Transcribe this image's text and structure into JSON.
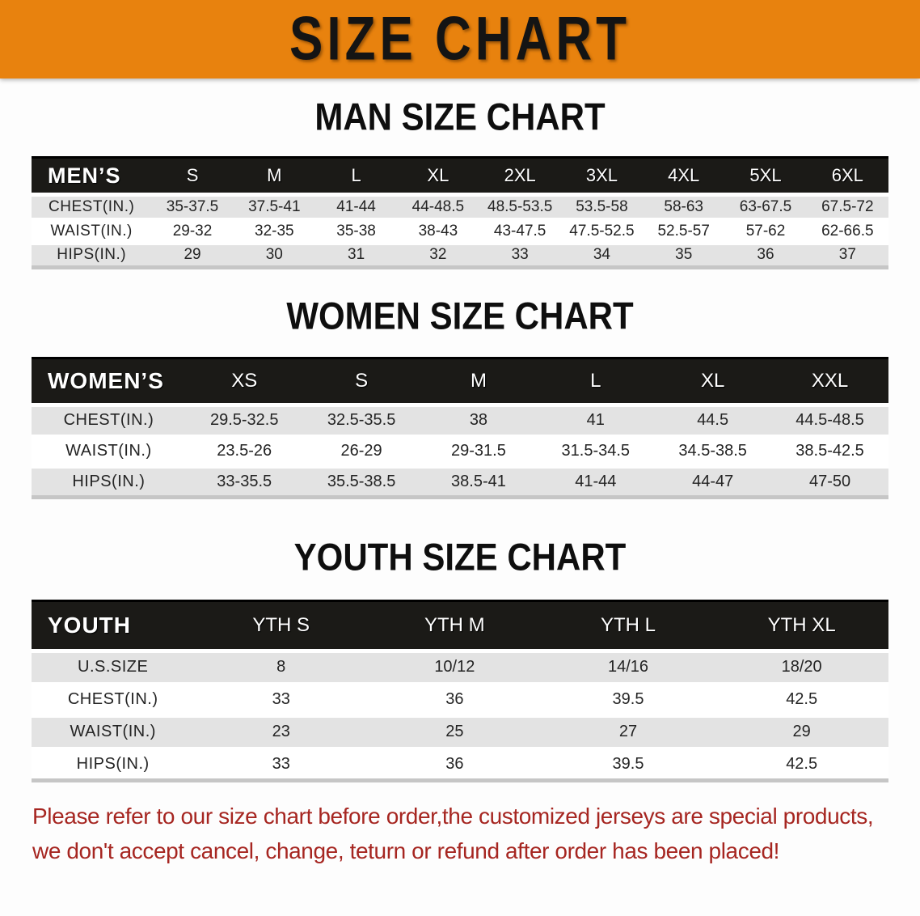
{
  "banner": {
    "title": "SIZE CHART"
  },
  "colors": {
    "banner_orange": "#E8820E",
    "header_black": "#1B1A17",
    "row_gray": "#E3E3E3",
    "disclaimer_red": "#A62621",
    "text_dark": "#242424",
    "table_edge_gray": "#C6C6C6"
  },
  "sections": [
    {
      "id": "men",
      "heading": "MAN SIZE CHART",
      "header_label": "MEN’S",
      "sizes": [
        "S",
        "M",
        "L",
        "XL",
        "2XL",
        "3XL",
        "4XL",
        "5XL",
        "6XL"
      ],
      "rows": [
        {
          "label": "CHEST(IN.)",
          "values": [
            "35-37.5",
            "37.5-41",
            "41-44",
            "44-48.5",
            "48.5-53.5",
            "53.5-58",
            "58-63",
            "63-67.5",
            "67.5-72"
          ]
        },
        {
          "label": "WAIST(IN.)",
          "values": [
            "29-32",
            "32-35",
            "35-38",
            "38-43",
            "43-47.5",
            "47.5-52.5",
            "52.5-57",
            "57-62",
            "62-66.5"
          ]
        },
        {
          "label": "HIPS(IN.)",
          "values": [
            "29",
            "30",
            "31",
            "32",
            "33",
            "34",
            "35",
            "36",
            "37"
          ]
        }
      ]
    },
    {
      "id": "women",
      "heading": "WOMEN SIZE CHART",
      "header_label": "WOMEN’S",
      "sizes": [
        "XS",
        "S",
        "M",
        "L",
        "XL",
        "XXL"
      ],
      "rows": [
        {
          "label": "CHEST(IN.)",
          "values": [
            "29.5-32.5",
            "32.5-35.5",
            "38",
            "41",
            "44.5",
            "44.5-48.5"
          ]
        },
        {
          "label": "WAIST(IN.)",
          "values": [
            "23.5-26",
            "26-29",
            "29-31.5",
            "31.5-34.5",
            "34.5-38.5",
            "38.5-42.5"
          ]
        },
        {
          "label": "HIPS(IN.)",
          "values": [
            "33-35.5",
            "35.5-38.5",
            "38.5-41",
            "41-44",
            "44-47",
            "47-50"
          ]
        }
      ]
    },
    {
      "id": "youth",
      "heading": "YOUTH SIZE CHART",
      "header_label": "YOUTH",
      "sizes": [
        "YTH S",
        "YTH M",
        "YTH L",
        "YTH XL"
      ],
      "rows": [
        {
          "label": "U.S.SIZE",
          "values": [
            "8",
            "10/12",
            "14/16",
            "18/20"
          ]
        },
        {
          "label": "CHEST(IN.)",
          "values": [
            "33",
            "36",
            "39.5",
            "42.5"
          ]
        },
        {
          "label": "WAIST(IN.)",
          "values": [
            "23",
            "25",
            "27",
            "29"
          ]
        },
        {
          "label": "HIPS(IN.)",
          "values": [
            "33",
            "36",
            "39.5",
            "42.5"
          ]
        }
      ]
    }
  ],
  "disclaimer": {
    "line1": "Please refer to our size chart before order,the customized jerseys are special products,",
    "line2": "we don't accept cancel, change, teturn or refund after order has been placed!"
  }
}
